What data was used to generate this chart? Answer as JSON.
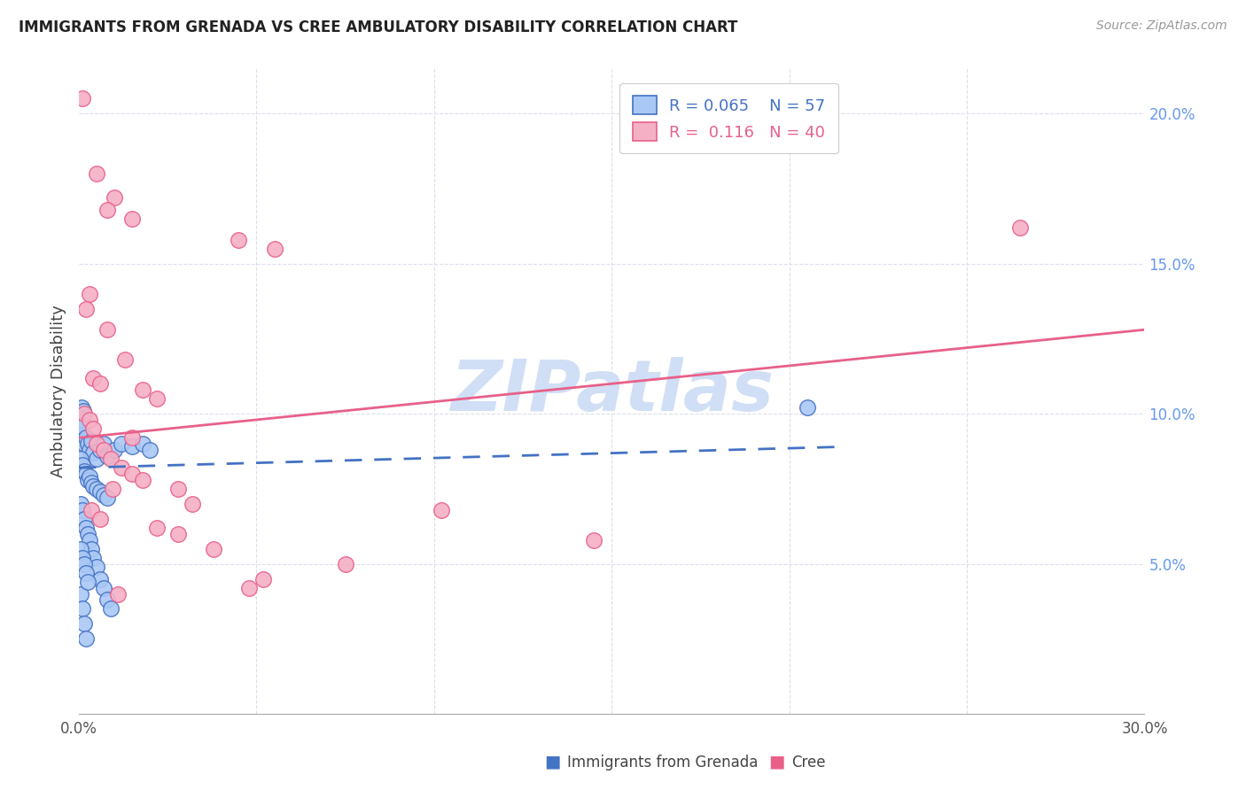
{
  "title": "IMMIGRANTS FROM GRENADA VS CREE AMBULATORY DISABILITY CORRELATION CHART",
  "source": "Source: ZipAtlas.com",
  "ylabel": "Ambulatory Disability",
  "right_ytick_vals": [
    5.0,
    10.0,
    15.0,
    20.0
  ],
  "x_min": 0.0,
  "x_max": 30.0,
  "y_min": 0.0,
  "y_max": 21.5,
  "color_blue": "#aac8f5",
  "color_pink": "#f5b0c5",
  "trendline_blue_color": "#4472c4",
  "trendline_pink_color": "#e8608a",
  "watermark_color": "#d0dff5",
  "blue_scatter": [
    [
      0.05,
      10.0
    ],
    [
      0.08,
      10.2
    ],
    [
      0.1,
      9.8
    ],
    [
      0.12,
      10.1
    ],
    [
      0.05,
      9.5
    ],
    [
      0.1,
      9.3
    ],
    [
      0.15,
      9.0
    ],
    [
      0.08,
      9.6
    ],
    [
      0.2,
      9.2
    ],
    [
      0.25,
      9.0
    ],
    [
      0.3,
      8.8
    ],
    [
      0.35,
      9.1
    ],
    [
      0.4,
      8.7
    ],
    [
      0.5,
      8.5
    ],
    [
      0.6,
      8.8
    ],
    [
      0.7,
      9.0
    ],
    [
      0.8,
      8.6
    ],
    [
      1.0,
      8.8
    ],
    [
      1.2,
      9.0
    ],
    [
      1.5,
      8.9
    ],
    [
      1.8,
      9.0
    ],
    [
      2.0,
      8.8
    ],
    [
      0.05,
      8.5
    ],
    [
      0.1,
      8.3
    ],
    [
      0.15,
      8.1
    ],
    [
      0.2,
      8.0
    ],
    [
      0.25,
      7.8
    ],
    [
      0.3,
      7.9
    ],
    [
      0.35,
      7.7
    ],
    [
      0.4,
      7.6
    ],
    [
      0.5,
      7.5
    ],
    [
      0.6,
      7.4
    ],
    [
      0.7,
      7.3
    ],
    [
      0.8,
      7.2
    ],
    [
      0.05,
      7.0
    ],
    [
      0.1,
      6.8
    ],
    [
      0.15,
      6.5
    ],
    [
      0.2,
      6.2
    ],
    [
      0.25,
      6.0
    ],
    [
      0.3,
      5.8
    ],
    [
      0.35,
      5.5
    ],
    [
      0.4,
      5.2
    ],
    [
      0.5,
      4.9
    ],
    [
      0.6,
      4.5
    ],
    [
      0.7,
      4.2
    ],
    [
      0.8,
      3.8
    ],
    [
      0.9,
      3.5
    ],
    [
      0.05,
      4.0
    ],
    [
      0.1,
      3.5
    ],
    [
      0.15,
      3.0
    ],
    [
      0.2,
      2.5
    ],
    [
      0.05,
      5.5
    ],
    [
      0.1,
      5.2
    ],
    [
      0.15,
      5.0
    ],
    [
      0.2,
      4.7
    ],
    [
      0.25,
      4.4
    ],
    [
      20.5,
      10.2
    ]
  ],
  "pink_scatter": [
    [
      0.1,
      20.5
    ],
    [
      0.5,
      18.0
    ],
    [
      1.0,
      17.2
    ],
    [
      0.8,
      16.8
    ],
    [
      1.5,
      16.5
    ],
    [
      0.3,
      14.0
    ],
    [
      0.8,
      12.8
    ],
    [
      1.3,
      11.8
    ],
    [
      4.5,
      15.8
    ],
    [
      5.5,
      15.5
    ],
    [
      0.2,
      13.5
    ],
    [
      0.4,
      11.2
    ],
    [
      0.6,
      11.0
    ],
    [
      1.8,
      10.8
    ],
    [
      2.2,
      10.5
    ],
    [
      0.15,
      10.0
    ],
    [
      0.3,
      9.8
    ],
    [
      0.4,
      9.5
    ],
    [
      1.5,
      9.2
    ],
    [
      0.5,
      9.0
    ],
    [
      0.7,
      8.8
    ],
    [
      0.9,
      8.5
    ],
    [
      1.2,
      8.2
    ],
    [
      1.5,
      8.0
    ],
    [
      1.8,
      7.8
    ],
    [
      2.8,
      7.5
    ],
    [
      3.2,
      7.0
    ],
    [
      0.35,
      6.8
    ],
    [
      0.6,
      6.5
    ],
    [
      2.2,
      6.2
    ],
    [
      2.8,
      6.0
    ],
    [
      7.5,
      5.0
    ],
    [
      5.2,
      4.5
    ],
    [
      3.8,
      5.5
    ],
    [
      4.8,
      4.2
    ],
    [
      10.2,
      6.8
    ],
    [
      14.5,
      5.8
    ],
    [
      26.5,
      16.2
    ],
    [
      0.95,
      7.5
    ],
    [
      1.1,
      4.0
    ]
  ],
  "blue_trend_x": [
    0.0,
    21.5
  ],
  "blue_trend_y_start": 8.2,
  "blue_trend_y_end": 8.9,
  "pink_trend_x": [
    0.0,
    30.0
  ],
  "pink_trend_y_start": 9.2,
  "pink_trend_y_end": 12.8
}
